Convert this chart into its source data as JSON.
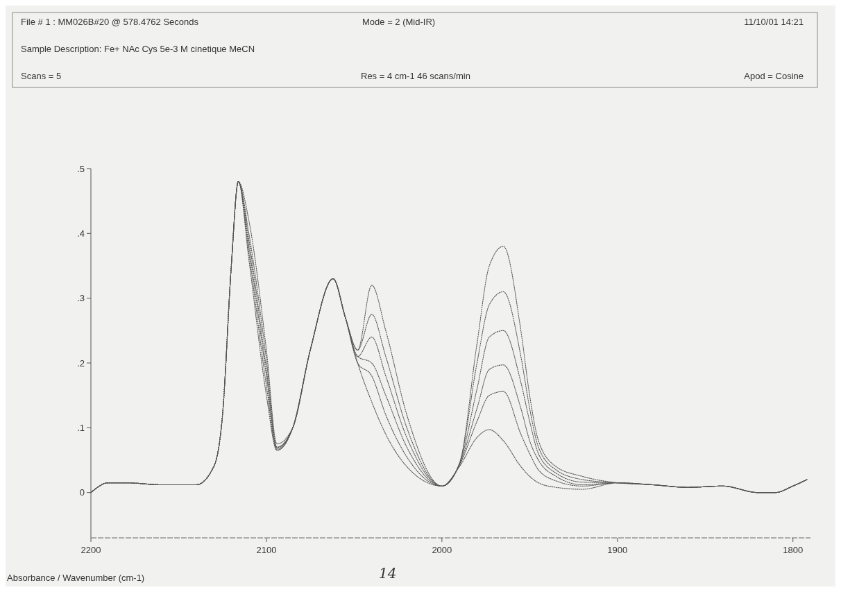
{
  "chart_data": {
    "type": "line",
    "xlabel": "Absorbance / Wavenumber (cm-1)",
    "annotations": [
      "File # 1 : MM026B#20  @ 578.4762 Seconds",
      "Mode = 2 (Mid-IR)",
      "11/10/01 14:21",
      "Sample Description: Fe+ NAc Cys 5e-3 M cinetique MeCN",
      "Scans = 5",
      "Res = 4 cm-1    46 scans/min",
      "Apod = Cosine",
      "14"
    ],
    "x": [
      2200,
      2190,
      2180,
      2160,
      2140,
      2130,
      2125,
      2120,
      2116,
      2110,
      2100,
      2094,
      2085,
      2075,
      2062,
      2055,
      2048,
      2040,
      2032,
      2020,
      2000,
      1990,
      1980,
      1973,
      1965,
      1955,
      1950,
      1945,
      1935,
      1920,
      1900,
      1880,
      1860,
      1840,
      1820,
      1810,
      1800,
      1792
    ],
    "series": [
      {
        "color": "#555555",
        "values": [
          0,
          0.015,
          0.015,
          0.012,
          0.012,
          0.04,
          0.12,
          0.35,
          0.48,
          0.36,
          0.15,
          0.065,
          0.1,
          0.22,
          0.33,
          0.27,
          0.2,
          0.14,
          0.09,
          0.04,
          0.01,
          0.04,
          0.085,
          0.097,
          0.08,
          0.04,
          0.025,
          0.015,
          0.008,
          0.005,
          0.015,
          0.012,
          0.008,
          0.01,
          0,
          0,
          0.01,
          0.02
        ]
      },
      {
        "color": "#555555",
        "values": [
          0,
          0.015,
          0.015,
          0.012,
          0.012,
          0.04,
          0.12,
          0.35,
          0.48,
          0.37,
          0.165,
          0.066,
          0.1,
          0.22,
          0.33,
          0.27,
          0.2,
          0.18,
          0.12,
          0.055,
          0.01,
          0.042,
          0.11,
          0.15,
          0.156,
          0.09,
          0.06,
          0.035,
          0.018,
          0.01,
          0.015,
          0.012,
          0.008,
          0.01,
          0,
          0,
          0.01,
          0.02
        ]
      },
      {
        "color": "#555555",
        "values": [
          0,
          0.015,
          0.015,
          0.012,
          0.012,
          0.04,
          0.12,
          0.35,
          0.48,
          0.38,
          0.18,
          0.068,
          0.1,
          0.22,
          0.33,
          0.27,
          0.21,
          0.2,
          0.15,
          0.07,
          0.01,
          0.043,
          0.13,
          0.19,
          0.197,
          0.13,
          0.08,
          0.05,
          0.025,
          0.012,
          0.015,
          0.012,
          0.008,
          0.01,
          0,
          0,
          0.01,
          0.02
        ]
      },
      {
        "color": "#555555",
        "values": [
          0,
          0.015,
          0.015,
          0.012,
          0.012,
          0.04,
          0.12,
          0.35,
          0.48,
          0.39,
          0.19,
          0.07,
          0.1,
          0.22,
          0.33,
          0.27,
          0.21,
          0.24,
          0.18,
          0.085,
          0.01,
          0.044,
          0.16,
          0.24,
          0.25,
          0.17,
          0.11,
          0.06,
          0.03,
          0.016,
          0.015,
          0.012,
          0.008,
          0.01,
          0,
          0,
          0.01,
          0.02
        ]
      },
      {
        "color": "#555555",
        "values": [
          0,
          0.015,
          0.015,
          0.012,
          0.012,
          0.04,
          0.12,
          0.35,
          0.48,
          0.4,
          0.205,
          0.07,
          0.1,
          0.22,
          0.33,
          0.27,
          0.22,
          0.275,
          0.21,
          0.1,
          0.01,
          0.045,
          0.2,
          0.29,
          0.31,
          0.21,
          0.13,
          0.07,
          0.035,
          0.02,
          0.015,
          0.012,
          0.008,
          0.01,
          0,
          0,
          0.01,
          0.02
        ]
      },
      {
        "color": "#555555",
        "values": [
          0,
          0.015,
          0.015,
          0.012,
          0.012,
          0.04,
          0.12,
          0.35,
          0.48,
          0.42,
          0.22,
          0.075,
          0.1,
          0.22,
          0.33,
          0.27,
          0.22,
          0.32,
          0.25,
          0.12,
          0.01,
          0.045,
          0.23,
          0.35,
          0.38,
          0.25,
          0.15,
          0.08,
          0.04,
          0.025,
          0.015,
          0.012,
          0.008,
          0.01,
          0,
          0,
          0.01,
          0.02
        ]
      }
    ],
    "xlim": [
      2200,
      1790
    ],
    "xticks": [
      2200,
      2100,
      2000,
      1900,
      1800
    ],
    "ylim": [
      -0.07,
      0.5
    ],
    "yticks": [
      {
        "value": 0,
        "label": "0"
      },
      {
        "value": 0.1,
        "label": ".1"
      },
      {
        "value": 0.2,
        "label": ".2"
      },
      {
        "value": 0.3,
        "label": ".3"
      },
      {
        "value": 0.4,
        "label": ".4"
      },
      {
        "value": 0.5,
        "label": ".5"
      }
    ],
    "marker": "none",
    "line_style": "dotted"
  }
}
